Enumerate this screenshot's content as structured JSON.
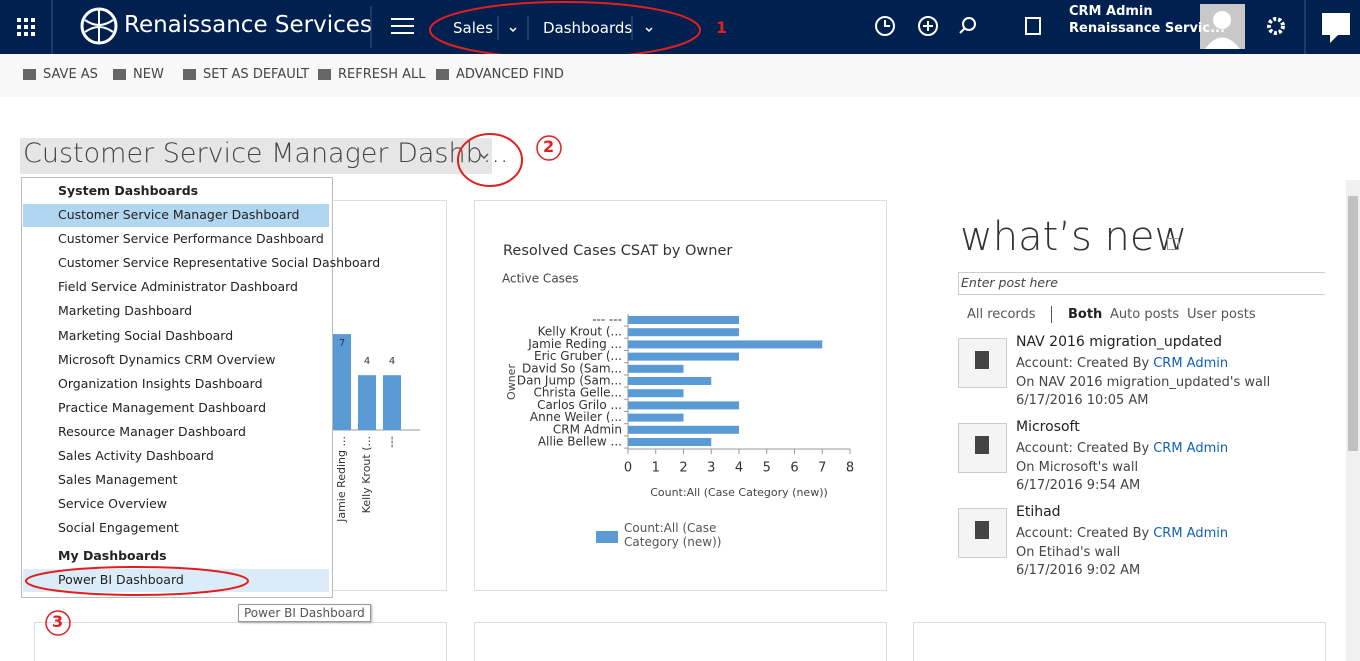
{
  "header": {
    "brand": "Renaissance Services",
    "nav": [
      "Sales",
      "Dashboards"
    ],
    "marker": "1",
    "user_name": "CRM Admin",
    "user_org": "Renaissance Servic..."
  },
  "toolbar": [
    "SAVE AS",
    "NEW",
    "SET AS DEFAULT",
    "REFRESH ALL",
    "ADVANCED FIND"
  ],
  "dashboard": {
    "title": "Customer Service Manager Dashb...",
    "marker": "2"
  },
  "dropdown": {
    "system_heading": "System Dashboards",
    "system_items": [
      "Customer Service Manager Dashboard",
      "Customer Service Performance Dashboard",
      "Customer Service Representative Social Dashboard",
      "Field Service Administrator Dashboard",
      "Marketing Dashboard",
      "Marketing Social Dashboard",
      "Microsoft Dynamics CRM Overview",
      "Organization Insights Dashboard",
      "Practice Management Dashboard",
      "Resource Manager Dashboard",
      "Sales Activity Dashboard",
      "Sales Management",
      "Service Overview",
      "Social Engagement"
    ],
    "my_heading": "My Dashboards",
    "my_items": [
      "Power BI Dashboard"
    ],
    "marker": "3",
    "tooltip": "Power BI Dashboard"
  },
  "chart_data": [
    {
      "type": "bar",
      "categories": [
        "Jamie Reding ...",
        "Kelly Krout (...",
        "---"
      ],
      "values": [
        7,
        4,
        4
      ],
      "color": "#5b9bd5"
    },
    {
      "type": "hbar",
      "title": "Resolved Cases CSAT by Owner",
      "subtitle": "Active Cases",
      "y_label": "Owner",
      "x_label": "Count:All (Case Category (new))",
      "categories": [
        "--- ---",
        "Kelly Krout (...",
        "Jamie Reding ...",
        "Eric Gruber (...",
        "David So (Sam...",
        "Dan Jump (Sam...",
        "Christa Gelle...",
        "Carlos Grilo ...",
        "Anne Weiler (...",
        "CRM Admin",
        "Allie Bellew ..."
      ],
      "series": [
        {
          "name": "Count:All (Case Category (new))",
          "color": "#5b9bd5",
          "values": [
            4,
            4,
            7,
            4,
            2,
            3,
            2,
            4,
            2,
            4,
            3
          ]
        }
      ],
      "xlim": [
        0,
        8
      ],
      "xticks": [
        0,
        1,
        2,
        3,
        4,
        5,
        6,
        7,
        8
      ]
    }
  ],
  "whats_new": {
    "title": "what’s new",
    "placeholder": "Enter post here",
    "filters": [
      "All records",
      "Both",
      "Auto posts",
      "User posts"
    ],
    "posts": [
      {
        "title": "NAV 2016 migration_updated",
        "prefix": "Account: Created By",
        "author": "CRM Admin",
        "wall": "On NAV 2016 migration_updated's wall",
        "date": "6/17/2016 10:05 AM"
      },
      {
        "title": "Microsoft",
        "prefix": "Account: Created By",
        "author": "CRM Admin",
        "wall": "On Microsoft's wall",
        "date": "6/17/2016 9:54 AM"
      },
      {
        "title": "Etihad",
        "prefix": "Account: Created By",
        "author": "CRM Admin",
        "wall": "On Etihad's wall",
        "date": "6/17/2016 9:02 AM"
      }
    ]
  }
}
